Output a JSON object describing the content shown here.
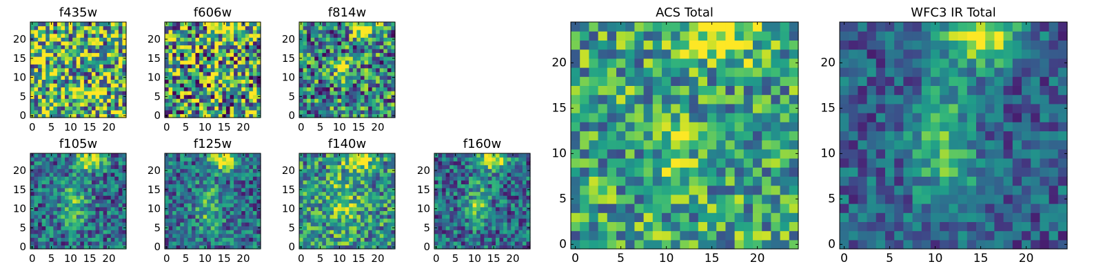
{
  "figure": {
    "panel_titles": [
      "f435w",
      "f606w",
      "f814w",
      "f105w",
      "f125w",
      "f140w",
      "f160w",
      "ACS Total",
      "WFC3 IR Total"
    ]
  },
  "chart_data": [
    {
      "type": "heatmap",
      "title": "f435w",
      "rows": 25,
      "cols": 25,
      "xlim": [
        0,
        24
      ],
      "ylim": [
        0,
        24
      ],
      "xticks": [
        0,
        5,
        10,
        15,
        20
      ],
      "yticks": [
        0,
        5,
        10,
        15,
        20
      ],
      "colormap": "viridis",
      "noise": 0.55,
      "blobs": [],
      "base": 0.65
    },
    {
      "type": "heatmap",
      "title": "f606w",
      "rows": 25,
      "cols": 25,
      "xlim": [
        0,
        24
      ],
      "ylim": [
        0,
        24
      ],
      "xticks": [
        0,
        5,
        10,
        15,
        20
      ],
      "yticks": [
        0,
        5,
        10,
        15,
        20
      ],
      "colormap": "viridis",
      "noise": 0.6,
      "blobs": [
        {
          "x": 16,
          "y": 23,
          "amp": 0.45,
          "sx": 2.5,
          "sy": 2.0
        }
      ],
      "base": 0.55
    },
    {
      "type": "heatmap",
      "title": "f814w",
      "rows": 25,
      "cols": 25,
      "xlim": [
        0,
        24
      ],
      "ylim": [
        0,
        24
      ],
      "xticks": [
        0,
        5,
        10,
        15,
        20
      ],
      "yticks": [
        0,
        5,
        10,
        15,
        20
      ],
      "colormap": "viridis",
      "noise": 0.45,
      "blobs": [
        {
          "x": 16,
          "y": 23,
          "amp": 0.55,
          "sx": 2.5,
          "sy": 2.0
        },
        {
          "x": 11,
          "y": 11,
          "amp": 0.35,
          "sx": 1.5,
          "sy": 2.5
        }
      ],
      "base": 0.45
    },
    {
      "type": "heatmap",
      "title": "f105w",
      "rows": 25,
      "cols": 25,
      "xlim": [
        0,
        24
      ],
      "ylim": [
        0,
        24
      ],
      "xticks": [
        0,
        5,
        10,
        15,
        20
      ],
      "yticks": [
        0,
        5,
        10,
        15,
        20
      ],
      "colormap": "viridis",
      "noise": 0.3,
      "blobs": [
        {
          "x": 15,
          "y": 23,
          "amp": 0.7,
          "sx": 2.5,
          "sy": 2.0
        },
        {
          "x": 11,
          "y": 11,
          "amp": 0.35,
          "sx": 2.5,
          "sy": 4.5
        }
      ],
      "base": 0.35
    },
    {
      "type": "heatmap",
      "title": "f125w",
      "rows": 25,
      "cols": 25,
      "xlim": [
        0,
        24
      ],
      "ylim": [
        0,
        24
      ],
      "xticks": [
        0,
        5,
        10,
        15,
        20
      ],
      "yticks": [
        0,
        5,
        10,
        15,
        20
      ],
      "colormap": "viridis",
      "noise": 0.3,
      "blobs": [
        {
          "x": 15,
          "y": 23,
          "amp": 0.7,
          "sx": 2.5,
          "sy": 2.0
        },
        {
          "x": 11,
          "y": 11,
          "amp": 0.35,
          "sx": 2.5,
          "sy": 4.5
        }
      ],
      "base": 0.35
    },
    {
      "type": "heatmap",
      "title": "f140w",
      "rows": 25,
      "cols": 25,
      "xlim": [
        0,
        24
      ],
      "ylim": [
        0,
        24
      ],
      "xticks": [
        0,
        5,
        10,
        15,
        20
      ],
      "yticks": [
        0,
        5,
        10,
        15,
        20
      ],
      "colormap": "viridis",
      "noise": 0.35,
      "blobs": [
        {
          "x": 15,
          "y": 23,
          "amp": 0.6,
          "sx": 2.5,
          "sy": 2.0
        },
        {
          "x": 11,
          "y": 11,
          "amp": 0.25,
          "sx": 3.0,
          "sy": 5.0
        }
      ],
      "base": 0.5
    },
    {
      "type": "heatmap",
      "title": "f160w",
      "rows": 25,
      "cols": 25,
      "xlim": [
        0,
        24
      ],
      "ylim": [
        0,
        24
      ],
      "xticks": [
        0,
        5,
        10,
        15,
        20
      ],
      "yticks": [
        0,
        5,
        10,
        15,
        20
      ],
      "colormap": "viridis",
      "noise": 0.3,
      "blobs": [
        {
          "x": 15,
          "y": 23,
          "amp": 0.7,
          "sx": 2.5,
          "sy": 2.0
        },
        {
          "x": 11,
          "y": 11,
          "amp": 0.4,
          "sx": 2.0,
          "sy": 4.0
        }
      ],
      "base": 0.35
    },
    {
      "type": "heatmap",
      "title": "ACS Total",
      "rows": 25,
      "cols": 25,
      "xlim": [
        0,
        24
      ],
      "ylim": [
        0,
        24
      ],
      "xticks": [
        0,
        5,
        10,
        15,
        20
      ],
      "yticks": [
        0,
        5,
        10,
        15,
        20
      ],
      "colormap": "viridis",
      "noise": 0.35,
      "blobs": [
        {
          "x": 16,
          "y": 23,
          "amp": 0.45,
          "sx": 2.5,
          "sy": 2.0
        },
        {
          "x": 11,
          "y": 11,
          "amp": 0.3,
          "sx": 1.2,
          "sy": 2.2
        }
      ],
      "base": 0.58
    },
    {
      "type": "heatmap",
      "title": "WFC3 IR Total",
      "rows": 25,
      "cols": 25,
      "xlim": [
        0,
        24
      ],
      "ylim": [
        0,
        24
      ],
      "xticks": [
        0,
        5,
        10,
        15,
        20
      ],
      "yticks": [
        0,
        5,
        10,
        15,
        20
      ],
      "colormap": "viridis",
      "noise": 0.22,
      "blobs": [
        {
          "x": 15,
          "y": 23,
          "amp": 0.7,
          "sx": 2.8,
          "sy": 2.2
        },
        {
          "x": 11,
          "y": 11,
          "amp": 0.4,
          "sx": 2.5,
          "sy": 5.0
        }
      ],
      "base": 0.3
    }
  ]
}
